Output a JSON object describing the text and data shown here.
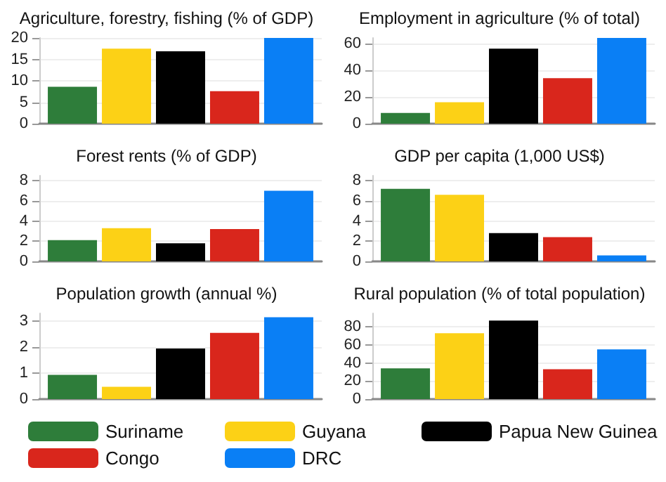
{
  "chart_data": [
    {
      "type": "bar",
      "title": "Agriculture, forestry, fishing (% of GDP)",
      "categories": [
        null
      ],
      "ylim": [
        0,
        20
      ],
      "yticks": [
        0,
        5,
        10,
        15,
        20
      ],
      "grid": "y",
      "legend": "bottom",
      "series": [
        {
          "name": "Suriname",
          "color": "#2e7d3a",
          "values": [
            8.6
          ]
        },
        {
          "name": "Guyana",
          "color": "#fcd116",
          "values": [
            17.5
          ]
        },
        {
          "name": "Papua New Guinea",
          "color": "#000000",
          "values": [
            16.9
          ]
        },
        {
          "name": "Congo",
          "color": "#d9261c",
          "values": [
            7.6
          ]
        },
        {
          "name": "DRC",
          "color": "#0a7ff5",
          "values": [
            20
          ]
        }
      ]
    },
    {
      "type": "bar",
      "title": "Employment in agriculture (% of total)",
      "categories": [
        null
      ],
      "ylim": [
        0,
        64
      ],
      "yticks": [
        0,
        20,
        40,
        60
      ],
      "grid": "y",
      "series": [
        {
          "color": "#2e7d3a",
          "values": [
            8
          ]
        },
        {
          "color": "#fcd116",
          "values": [
            16
          ]
        },
        {
          "color": "#000000",
          "values": [
            56
          ]
        },
        {
          "color": "#d9261c",
          "values": [
            34
          ]
        },
        {
          "color": "#0a7ff5",
          "values": [
            64
          ]
        }
      ]
    },
    {
      "type": "bar",
      "title": "Forest rents (% of GDP)",
      "categories": [
        null
      ],
      "ylim": [
        0,
        8.5
      ],
      "yticks": [
        0,
        2,
        4,
        6,
        8
      ],
      "grid": "y",
      "series": [
        {
          "color": "#2e7d3a",
          "values": [
            2.1
          ]
        },
        {
          "color": "#fcd116",
          "values": [
            3.3
          ]
        },
        {
          "color": "#000000",
          "values": [
            1.8
          ]
        },
        {
          "color": "#d9261c",
          "values": [
            3.2
          ]
        },
        {
          "color": "#0a7ff5",
          "values": [
            7.0
          ]
        }
      ]
    },
    {
      "type": "bar",
      "title": "GDP per capita (1,000 US$)",
      "categories": [
        null
      ],
      "ylim": [
        0,
        8.5
      ],
      "yticks": [
        0,
        2,
        4,
        6,
        8
      ],
      "grid": "y",
      "series": [
        {
          "color": "#2e7d3a",
          "values": [
            7.2
          ]
        },
        {
          "color": "#fcd116",
          "values": [
            6.6
          ]
        },
        {
          "color": "#000000",
          "values": [
            2.8
          ]
        },
        {
          "color": "#d9261c",
          "values": [
            2.4
          ]
        },
        {
          "color": "#0a7ff5",
          "values": [
            0.6
          ]
        }
      ]
    },
    {
      "type": "bar",
      "title": "Population growth (annual %)",
      "categories": [
        null
      ],
      "ylim": [
        0,
        3.3
      ],
      "yticks": [
        0,
        1,
        2,
        3
      ],
      "grid": "y",
      "series": [
        {
          "color": "#2e7d3a",
          "values": [
            0.93
          ]
        },
        {
          "color": "#fcd116",
          "values": [
            0.47
          ]
        },
        {
          "color": "#000000",
          "values": [
            1.95
          ]
        },
        {
          "color": "#d9261c",
          "values": [
            2.55
          ]
        },
        {
          "color": "#0a7ff5",
          "values": [
            3.15
          ]
        }
      ]
    },
    {
      "type": "bar",
      "title": "Rural population (% of total population)",
      "categories": [
        null
      ],
      "ylim": [
        0,
        95
      ],
      "yticks": [
        0,
        20,
        40,
        60,
        80
      ],
      "grid": "y",
      "series": [
        {
          "color": "#2e7d3a",
          "values": [
            34
          ]
        },
        {
          "color": "#fcd116",
          "values": [
            73
          ]
        },
        {
          "color": "#000000",
          "values": [
            87
          ]
        },
        {
          "color": "#d9261c",
          "values": [
            33
          ]
        },
        {
          "color": "#0a7ff5",
          "values": [
            55
          ]
        }
      ]
    }
  ]
}
